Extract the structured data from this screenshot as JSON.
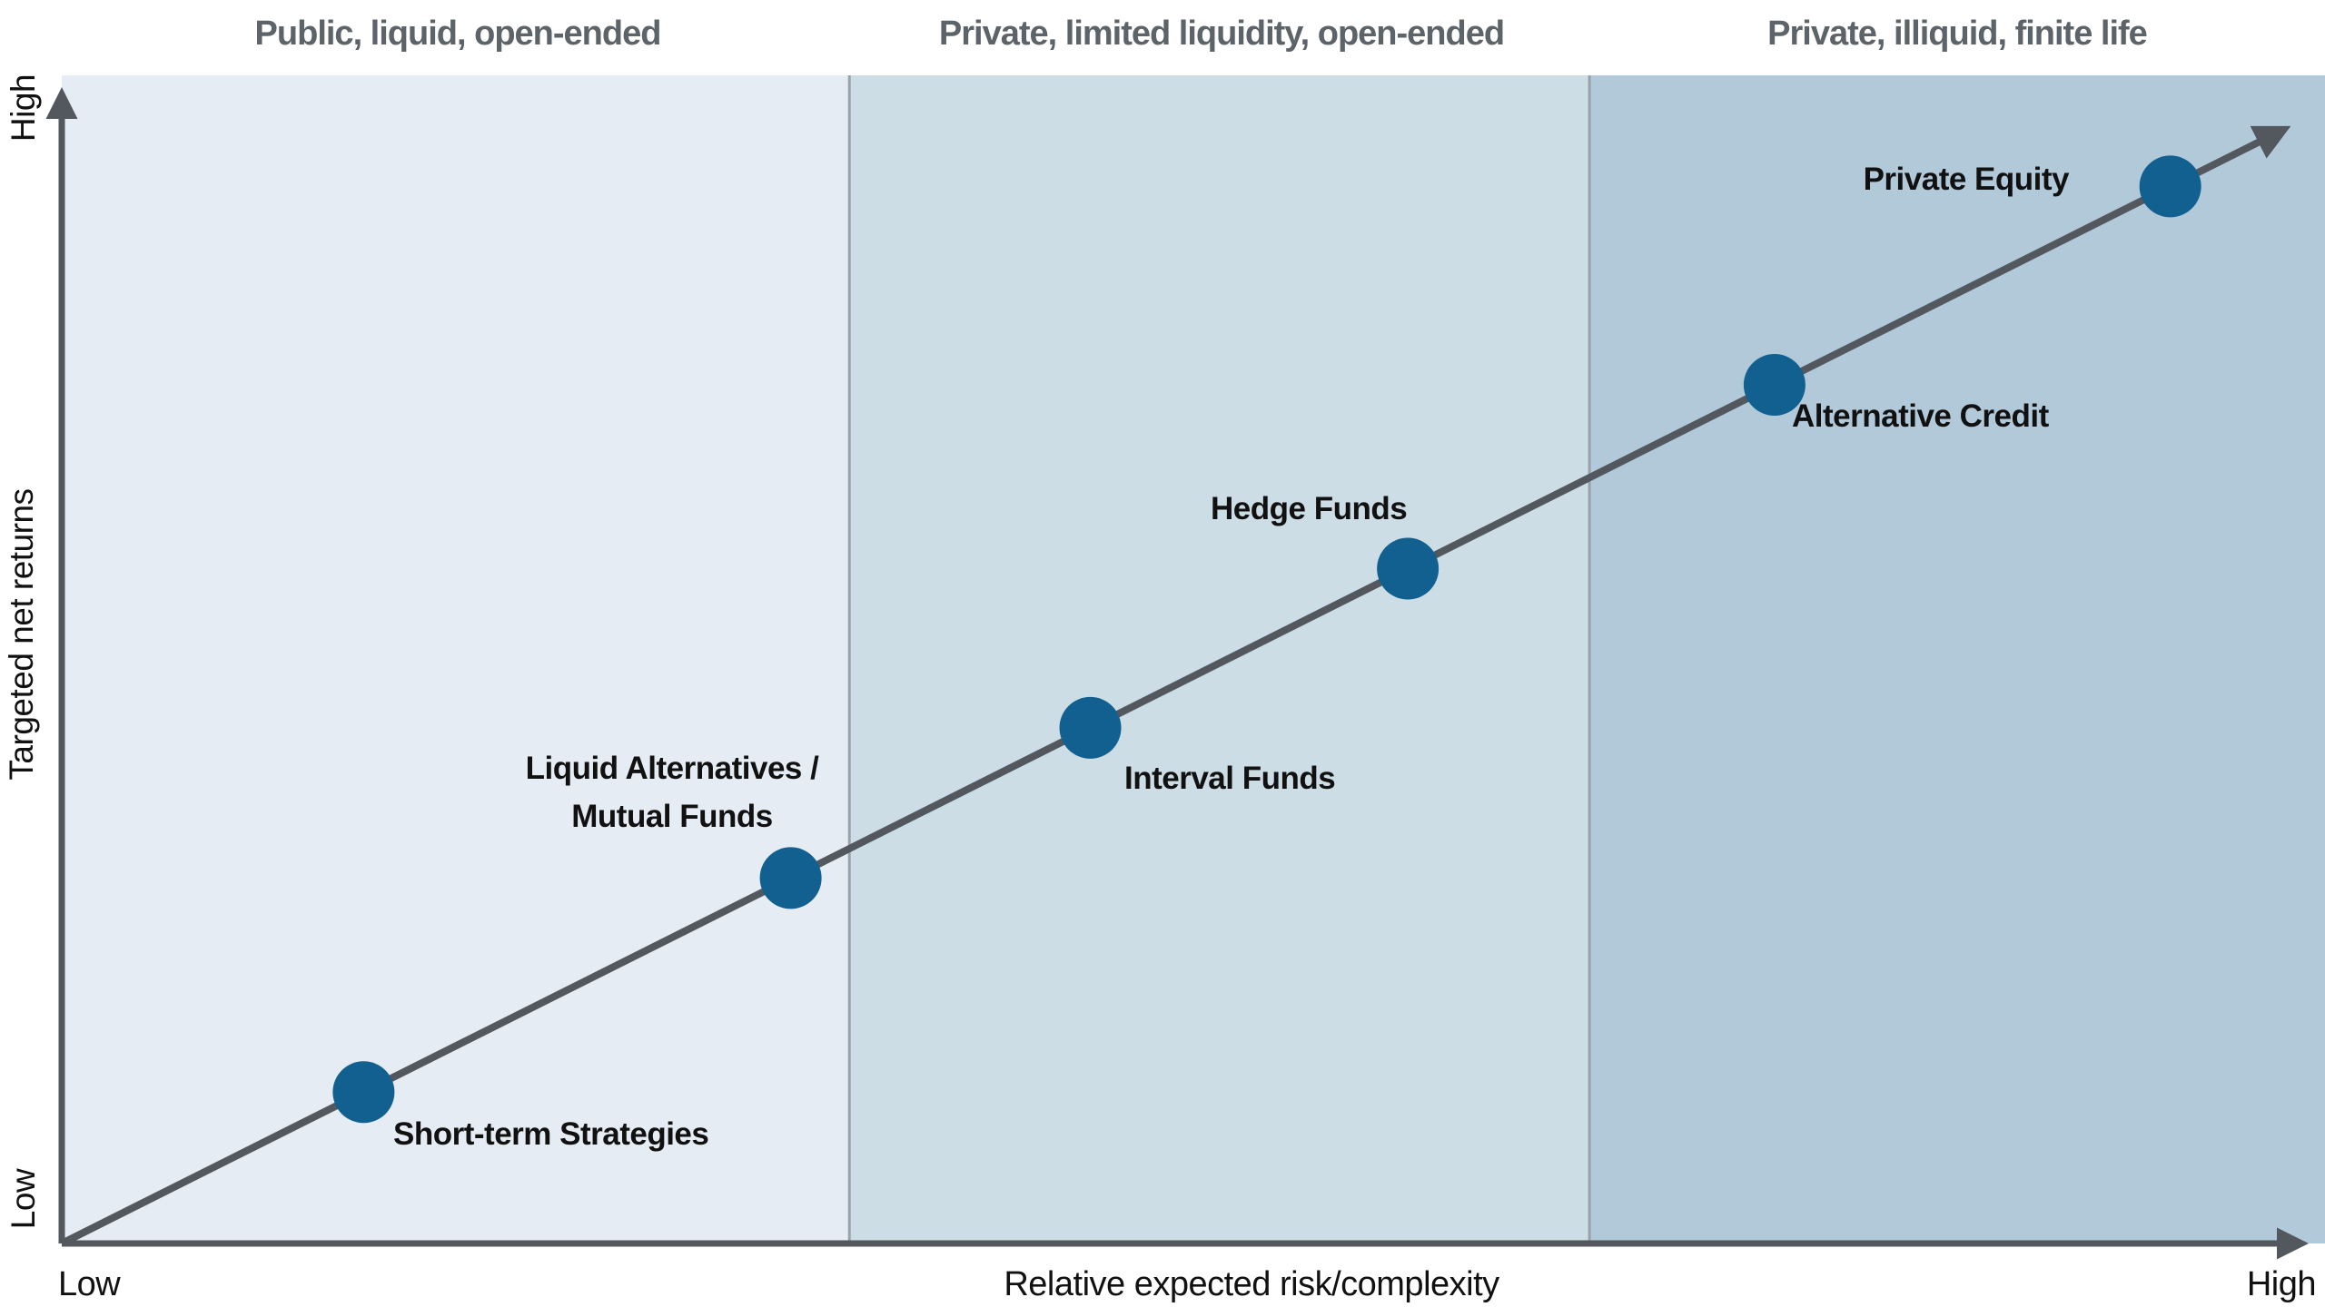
{
  "chart_data": {
    "type": "scatter",
    "subtype": "conceptual-risk-return-spectrum",
    "xlabel": "Relative expected risk/complexity",
    "ylabel": "Targeted net returns",
    "x_axis_range_labels": {
      "min": "Low",
      "max": "High"
    },
    "y_axis_range_labels": {
      "min": "Low",
      "max": "High"
    },
    "grid": false,
    "legend": false,
    "axis_arrows": true,
    "zones": [
      {
        "label": "Public, liquid, open-ended",
        "x_range": [
          0.0,
          0.348
        ],
        "color": "#e6ecf4"
      },
      {
        "label": "Private, limited liquidity, open-ended",
        "x_range": [
          0.348,
          0.675
        ],
        "color": "#cddde6"
      },
      {
        "label": "Private, illiquid, finite life",
        "x_range": [
          0.675,
          1.0
        ],
        "color": "#b2c9da"
      }
    ],
    "points": [
      {
        "label": "Short-term Strategies",
        "label_lines": [
          "Short-term Strategies"
        ],
        "risk": 0.135,
        "return": 0.135
      },
      {
        "label": "Liquid Alternatives / Mutual Funds",
        "label_lines": [
          "Liquid Alternatives /",
          "Mutual Funds"
        ],
        "risk": 0.326,
        "return": 0.326
      },
      {
        "label": "Interval Funds",
        "label_lines": [
          "Interval Funds"
        ],
        "risk": 0.46,
        "return": 0.46
      },
      {
        "label": "Hedge Funds",
        "label_lines": [
          "Hedge Funds"
        ],
        "risk": 0.602,
        "return": 0.602
      },
      {
        "label": "Alternative Credit",
        "label_lines": [
          "Alternative Credit"
        ],
        "risk": 0.766,
        "return": 0.766
      },
      {
        "label": "Private Equity",
        "label_lines": [
          "Private Equity"
        ],
        "risk": 0.943,
        "return": 0.943
      }
    ],
    "trend_arrow": {
      "from": {
        "risk": 0.0,
        "return": 0.0
      },
      "to": {
        "risk": 0.994,
        "return": 0.994
      }
    }
  },
  "colors": {
    "background": "#ffffff",
    "axis_line": "#53575e",
    "trend_line": "#53575e",
    "zone_divider": "#9aa2a8",
    "point_fill": "#11608f",
    "zone_header_text": "#5c6369",
    "label_text": "#111111"
  }
}
